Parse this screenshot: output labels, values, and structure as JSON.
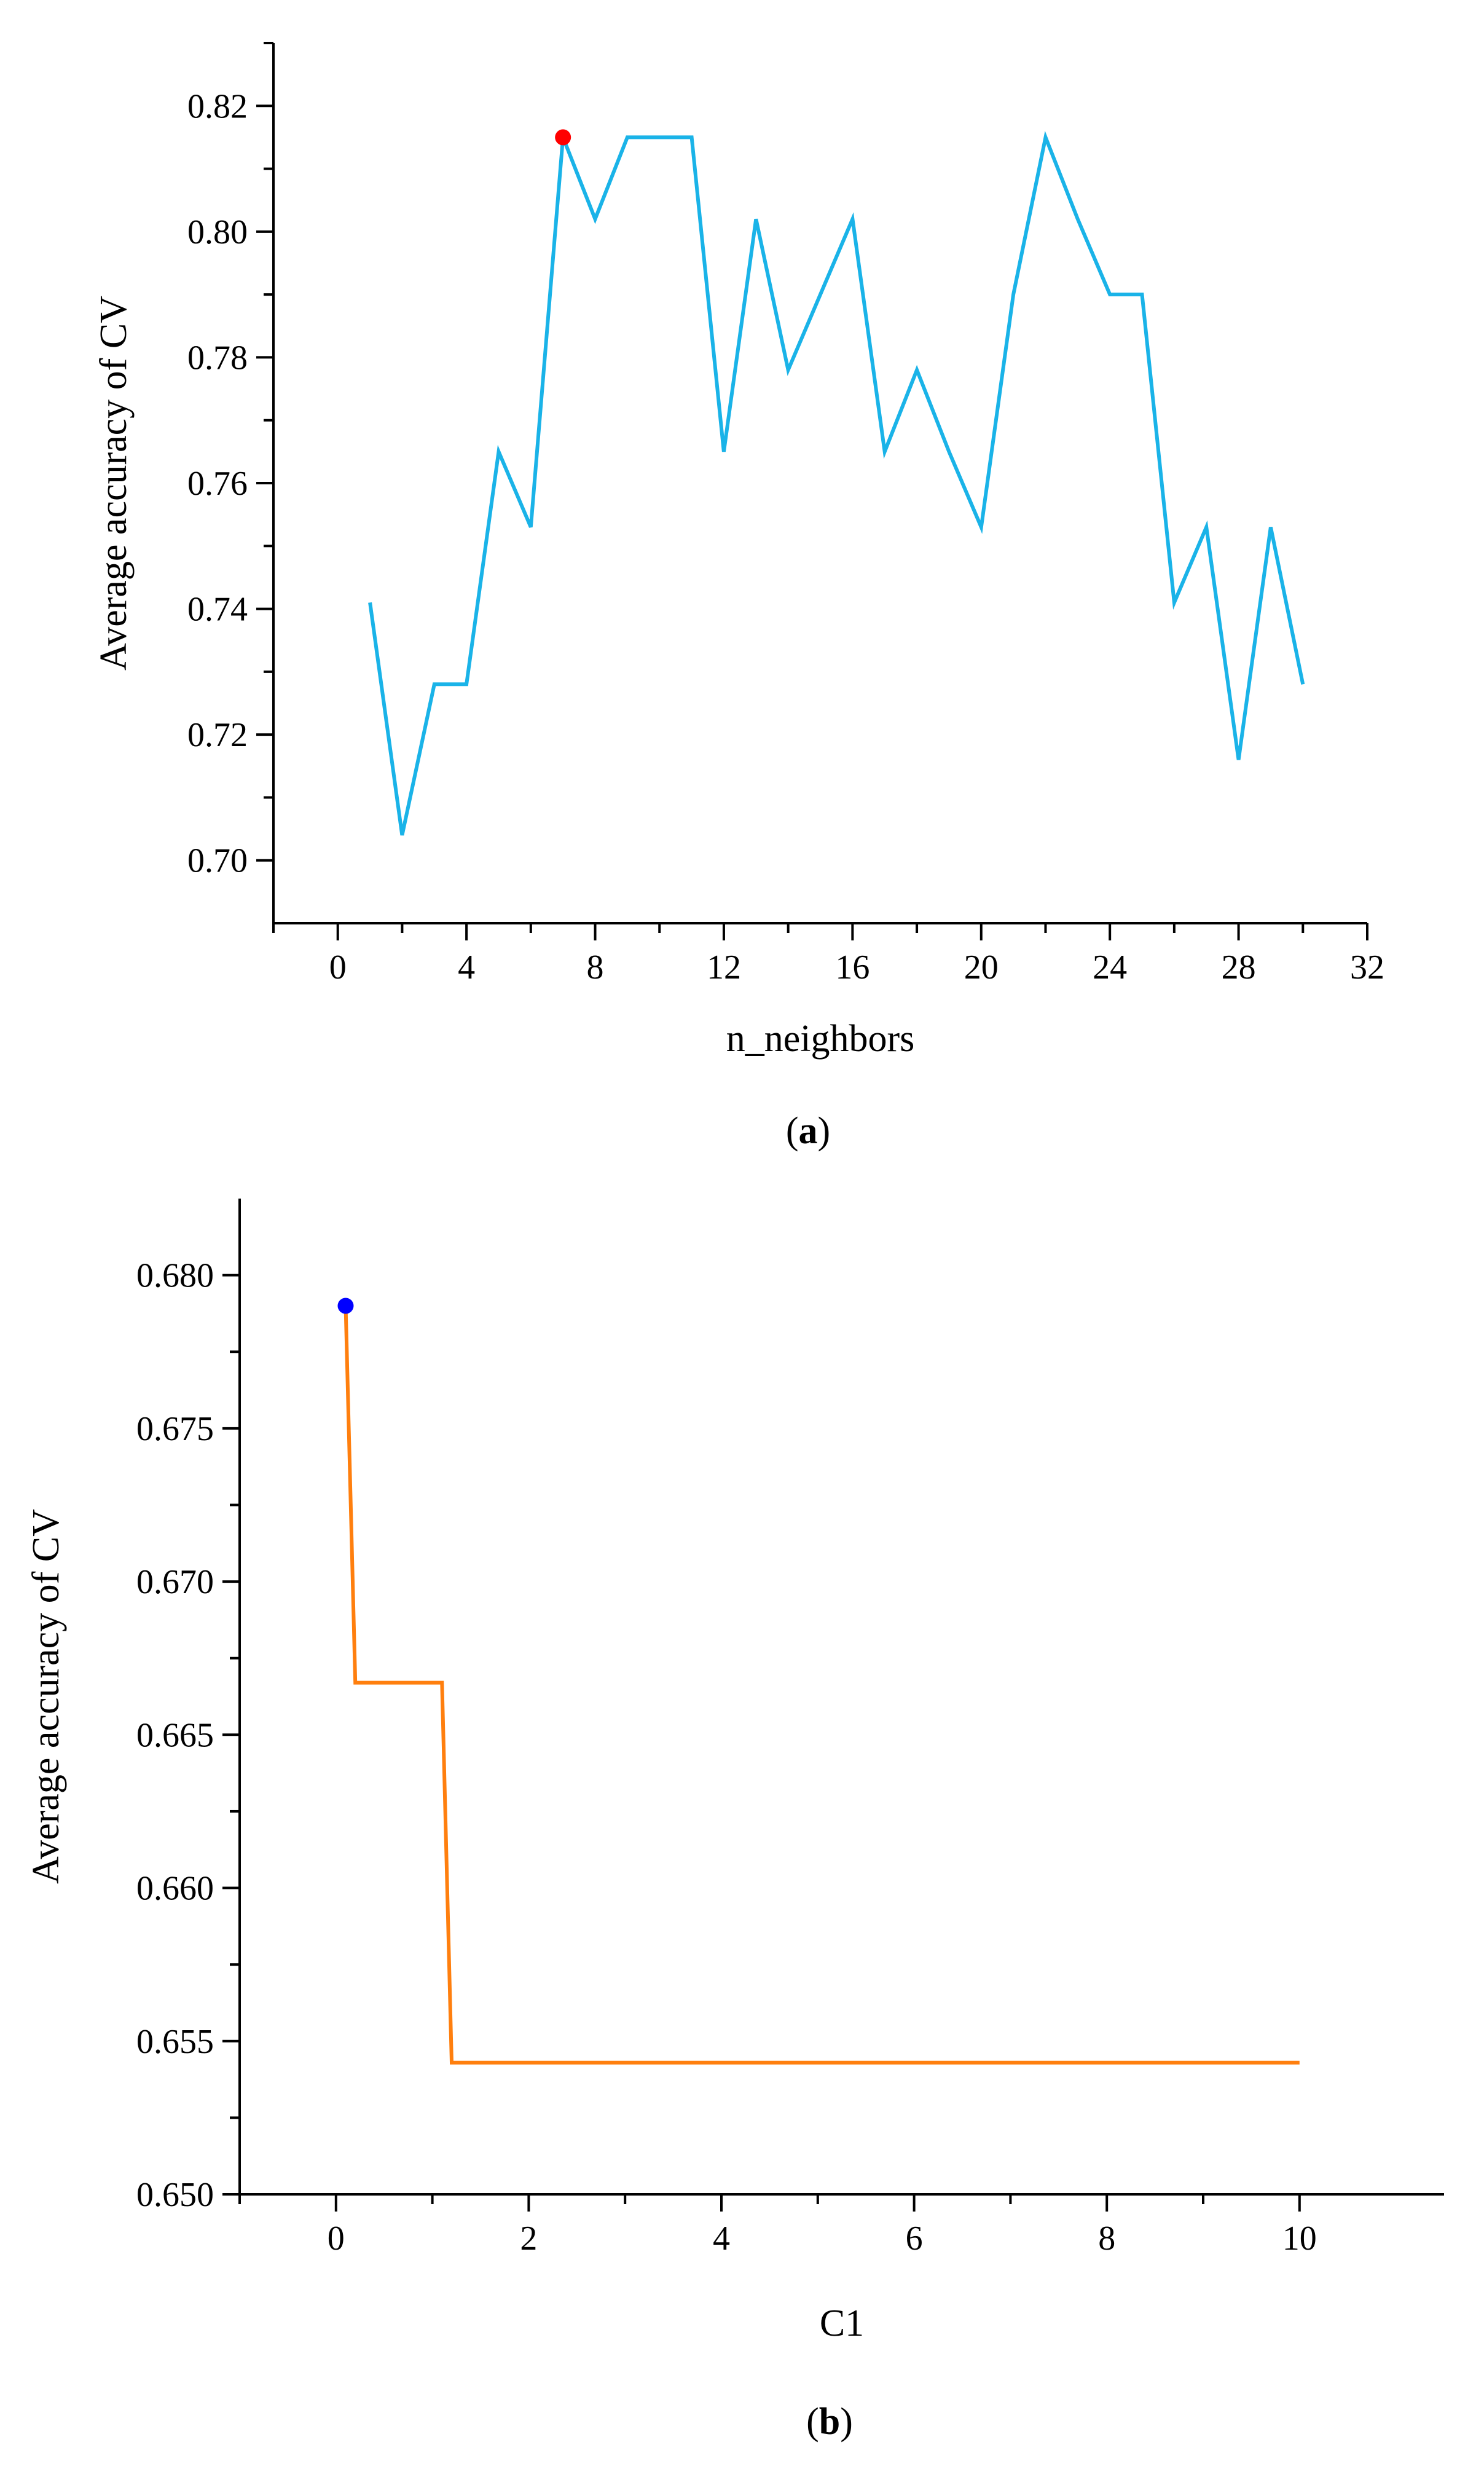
{
  "chart_data": [
    {
      "type": "line",
      "panel_label_open": "(",
      "panel_label": "a",
      "panel_label_close": ")",
      "xlabel": "n_neighbors",
      "ylabel": "Average accuracy of CV",
      "xlim": [
        -2,
        32
      ],
      "ylim": [
        0.69,
        0.83
      ],
      "xticks": [
        0,
        4,
        8,
        12,
        16,
        20,
        24,
        28,
        32
      ],
      "yticks": [
        0.7,
        0.72,
        0.74,
        0.76,
        0.78,
        0.8,
        0.82
      ],
      "ytick_format": 2,
      "line_color": "#1ab3e8",
      "series": [
        {
          "name": "accuracy",
          "x": [
            1,
            2,
            3,
            4,
            5,
            6,
            7,
            8,
            9,
            10,
            11,
            12,
            13,
            14,
            15,
            16,
            17,
            18,
            19,
            20,
            21,
            22,
            23,
            24,
            25,
            26,
            27,
            28,
            29,
            30
          ],
          "values": [
            0.741,
            0.704,
            0.728,
            0.728,
            0.765,
            0.753,
            0.815,
            0.802,
            0.815,
            0.815,
            0.815,
            0.765,
            0.802,
            0.778,
            0.79,
            0.802,
            0.765,
            0.778,
            0.765,
            0.753,
            0.79,
            0.815,
            0.802,
            0.79,
            0.79,
            0.741,
            0.753,
            0.716,
            0.753,
            0.728
          ]
        }
      ],
      "highlight": {
        "x": 7,
        "y": 0.815,
        "color": "#ff0000"
      }
    },
    {
      "type": "line",
      "panel_label_open": "(",
      "panel_label": "b",
      "panel_label_close": ")",
      "xlabel": "C1",
      "ylabel": "Average accuracy of CV",
      "xlim": [
        -1,
        11.5
      ],
      "ylim": [
        0.65,
        0.6825
      ],
      "xticks": [
        0,
        2,
        4,
        6,
        8,
        10
      ],
      "yticks": [
        0.65,
        0.655,
        0.66,
        0.665,
        0.67,
        0.675,
        0.68
      ],
      "ytick_format": 3,
      "line_color": "#ff7f0e",
      "series": [
        {
          "name": "accuracy",
          "x": [
            0.1,
            0.2,
            1.1,
            1.2,
            10
          ],
          "values": [
            0.679,
            0.6667,
            0.6667,
            0.6543,
            0.6543
          ]
        }
      ],
      "highlight": {
        "x": 0.1,
        "y": 0.679,
        "color": "#0000ff"
      }
    }
  ]
}
